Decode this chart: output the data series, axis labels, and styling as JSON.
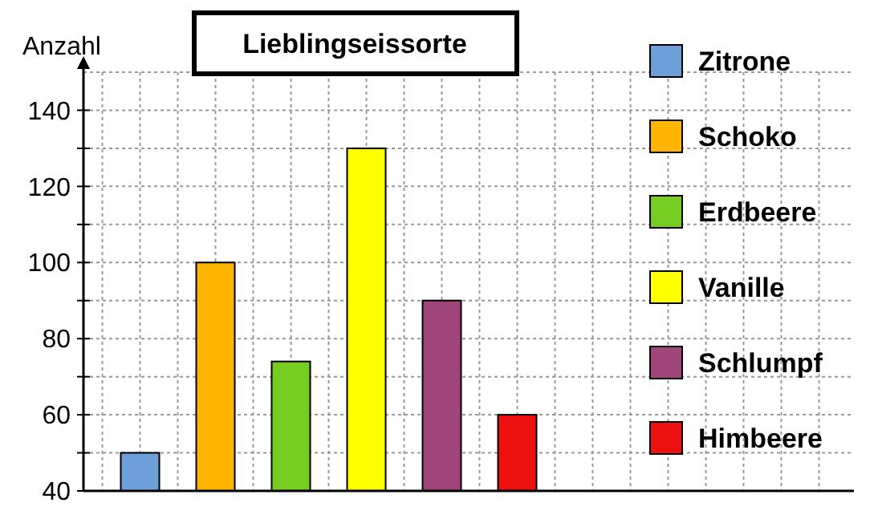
{
  "chart_data": {
    "type": "bar",
    "title": "Lieblingseissorte",
    "ylabel": "Anzahl",
    "categories": [
      null,
      null,
      null,
      null,
      null,
      null
    ],
    "stacked": true,
    "series": [
      {
        "name": "Zitrone",
        "color": "#6f9fd8",
        "values": [
          50,
          null,
          null,
          null,
          null,
          null
        ]
      },
      {
        "name": "Schoko",
        "color": "#ffb400",
        "values": [
          null,
          100,
          null,
          null,
          null,
          null
        ]
      },
      {
        "name": "Erdbeere",
        "color": "#77cc22",
        "values": [
          null,
          null,
          74,
          null,
          null,
          null
        ]
      },
      {
        "name": "Vanille",
        "color": "#ffff00",
        "values": [
          null,
          null,
          null,
          130,
          null,
          null
        ]
      },
      {
        "name": "Schlumpf",
        "color": "#a0457a",
        "values": [
          null,
          null,
          null,
          null,
          90,
          null
        ]
      },
      {
        "name": "Himbeere",
        "color": "#ee1111",
        "values": [
          null,
          null,
          null,
          null,
          null,
          60
        ]
      }
    ],
    "ylim": [
      40,
      150
    ],
    "yticks": [
      40,
      {
        "value": 50,
        "label": null
      },
      60,
      {
        "value": 70,
        "label": null
      },
      80,
      {
        "value": 90,
        "label": null
      },
      100,
      {
        "value": 110,
        "label": null
      },
      120,
      {
        "value": 130,
        "label": null
      },
      140
    ],
    "grid": true,
    "legend": "right",
    "tick_labels": "y"
  }
}
